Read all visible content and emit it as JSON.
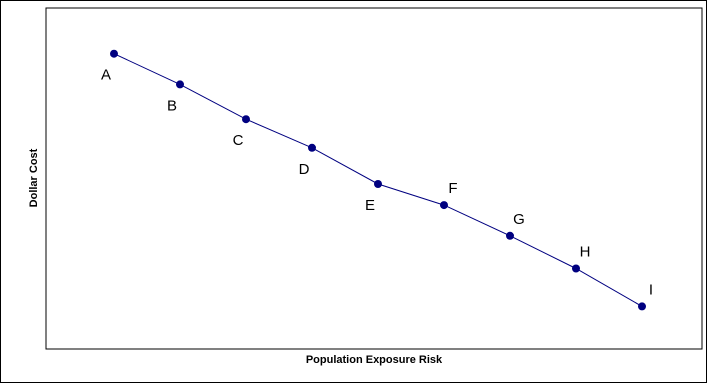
{
  "chart_data": {
    "type": "line",
    "title": "",
    "xlabel": "Population Exposure Risk",
    "ylabel": "Dollar Cost",
    "xlim": [
      0,
      10
    ],
    "ylim": [
      0,
      100
    ],
    "grid": false,
    "legend": "none",
    "series": [
      {
        "color": "#000080",
        "labels": [
          "A",
          "B",
          "C",
          "D",
          "E",
          "F",
          "G",
          "H",
          "I"
        ],
        "x": [
          1,
          2,
          3,
          4,
          5,
          6,
          7,
          8,
          9
        ],
        "y": [
          86.6,
          77.6,
          67.4,
          59.0,
          48.4,
          42.2,
          33.2,
          23.6,
          12.5
        ]
      }
    ]
  }
}
